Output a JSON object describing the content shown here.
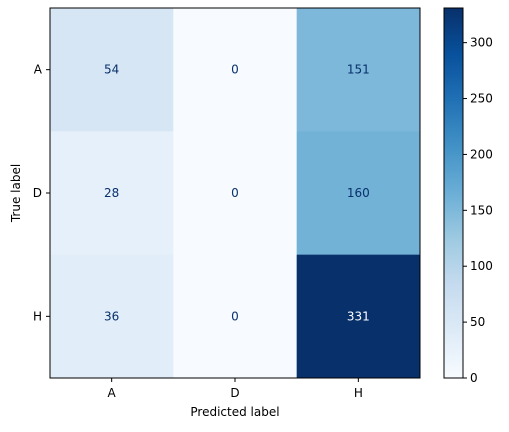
{
  "chart_data": {
    "type": "heatmap",
    "title": "",
    "xlabel": "Predicted label",
    "ylabel": "True label",
    "x_categories": [
      "A",
      "D",
      "H"
    ],
    "y_categories": [
      "A",
      "D",
      "H"
    ],
    "values": [
      [
        54,
        0,
        151
      ],
      [
        28,
        0,
        160
      ],
      [
        36,
        0,
        331
      ]
    ],
    "colormap": "Blues",
    "value_range": [
      0,
      331
    ],
    "colorbar_ticks": [
      0,
      50,
      100,
      150,
      200,
      250,
      300
    ],
    "text_colors": {
      "dark_on_light": "#08306b",
      "light_on_dark": "#ffffff"
    },
    "grid": false
  }
}
